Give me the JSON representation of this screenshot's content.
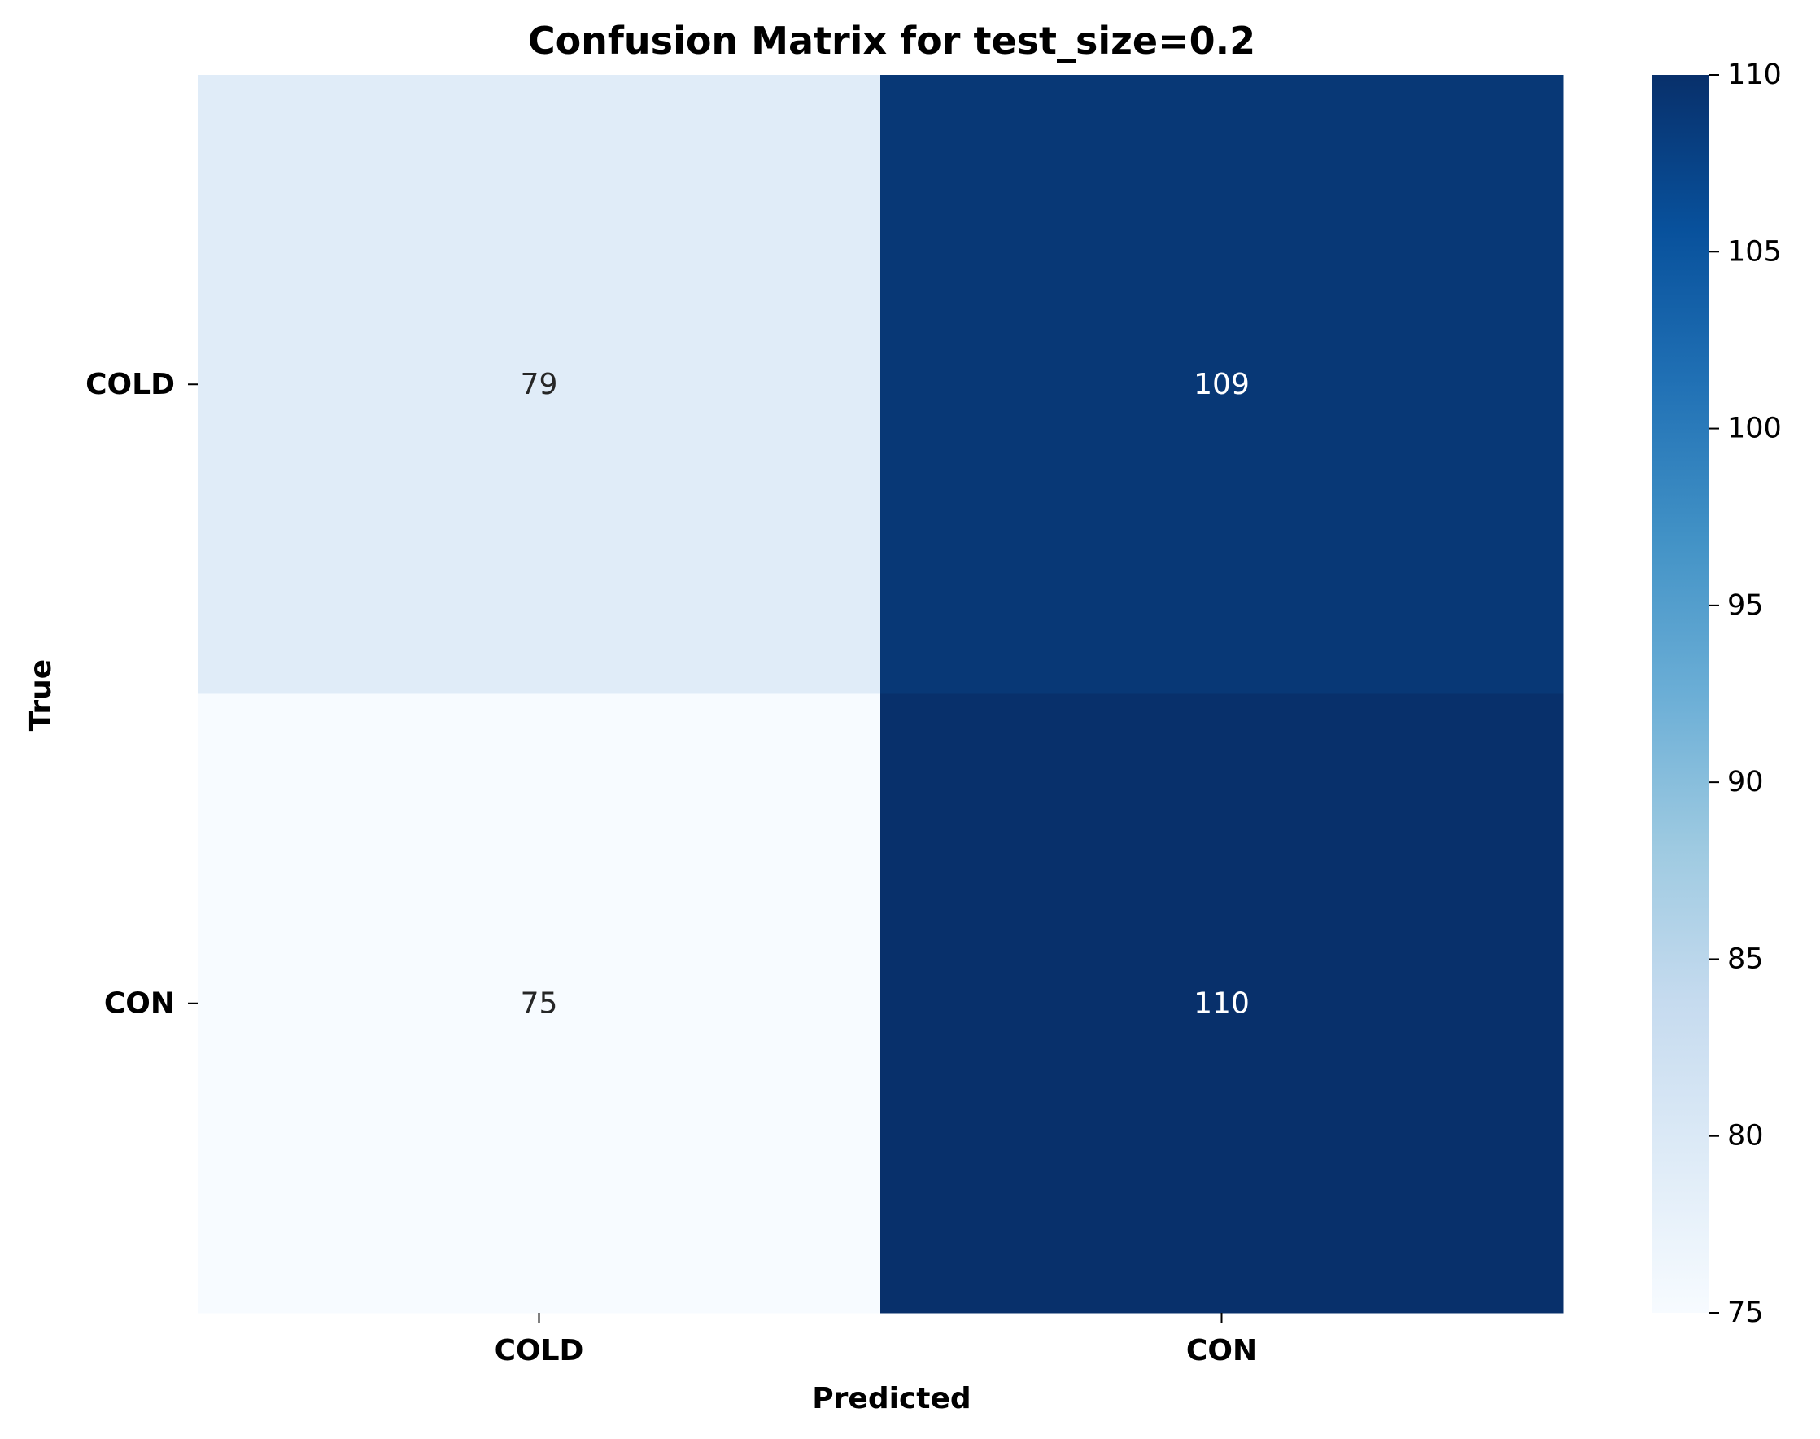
{
  "chart_data": {
    "type": "heatmap",
    "title": "Confusion Matrix for test_size=0.2",
    "xlabel": "Predicted",
    "ylabel": "True",
    "x_categories": [
      "COLD",
      "CON"
    ],
    "y_categories": [
      "COLD",
      "CON"
    ],
    "values": [
      [
        79,
        109
      ],
      [
        75,
        110
      ]
    ],
    "cell_labels": [
      [
        "79",
        "109"
      ],
      [
        "75",
        "110"
      ]
    ],
    "colormap": "Blues",
    "color_range": [
      75,
      110
    ],
    "colorbar_ticks": [
      75,
      80,
      85,
      90,
      95,
      100,
      105,
      110
    ],
    "colorbar_tick_labels": [
      "75",
      "80",
      "85",
      "90",
      "95",
      "100",
      "105",
      "110"
    ],
    "grid": false,
    "legend": "colorbar-right"
  }
}
